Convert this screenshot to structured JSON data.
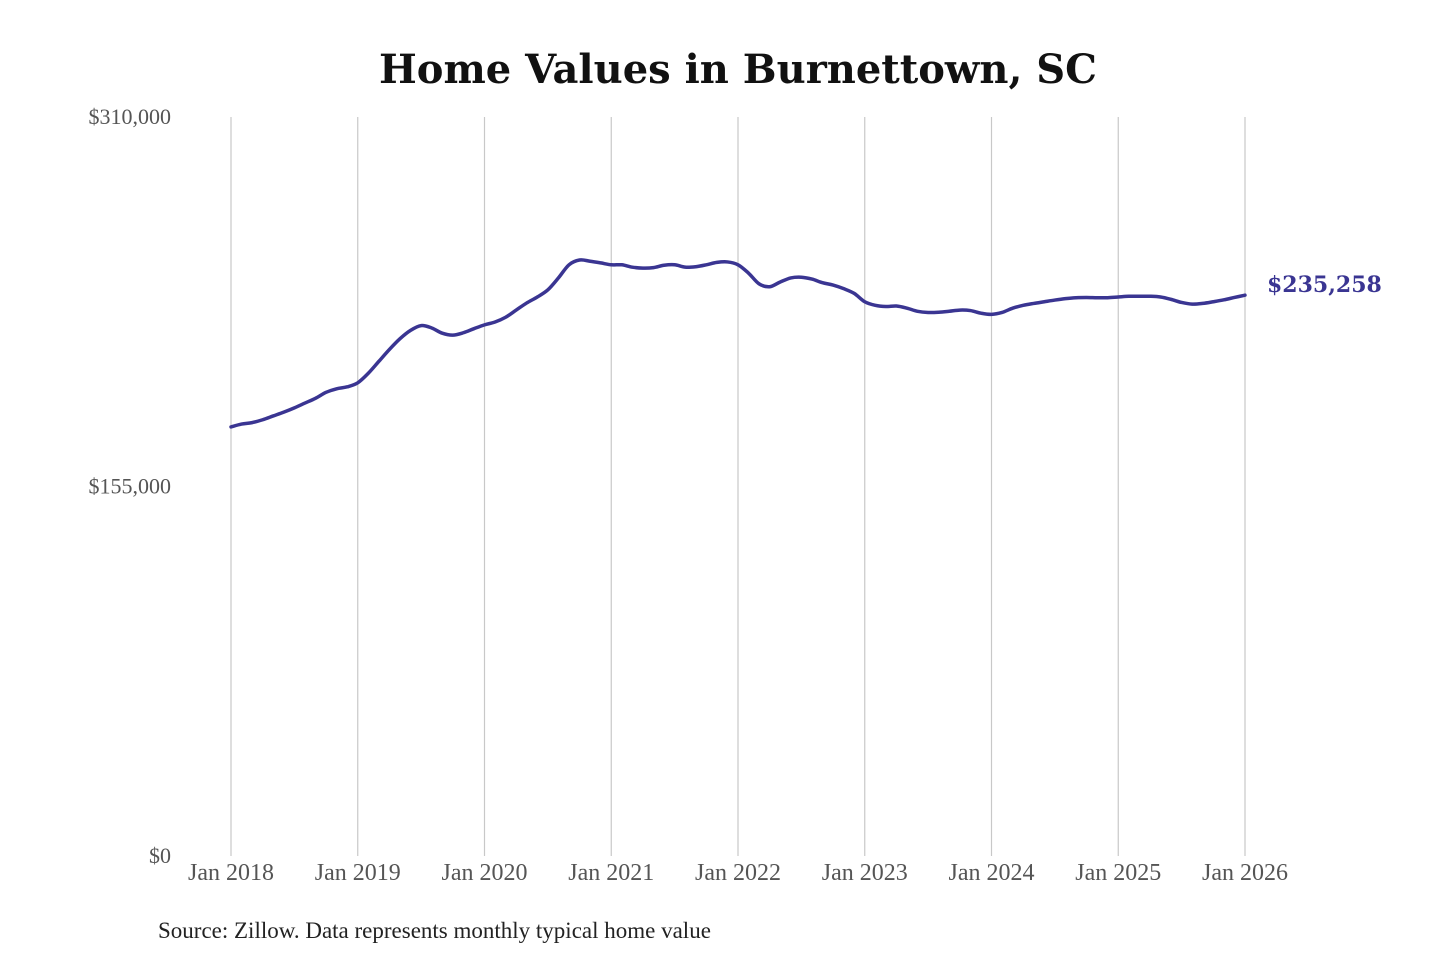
{
  "chart_data": {
    "type": "line",
    "title": "Home Values in Burnettown, SC",
    "source": "Source: Zillow. Data represents monthly typical home value",
    "y_ticks": [
      "$310,000",
      "$155,000",
      "$0"
    ],
    "x_ticks": [
      "Jan 2018",
      "Jan 2019",
      "Jan 2020",
      "Jan 2021",
      "Jan 2022",
      "Jan 2023",
      "Jan 2024",
      "Jan 2025",
      "Jan 2026"
    ],
    "ylim": [
      0,
      310000
    ],
    "xlim": [
      "2018-01",
      "2026-01"
    ],
    "grid": "vertical",
    "line_color": "#3a3592",
    "end_label": "$235,258",
    "series": [
      {
        "points": [
          [
            "2018-01",
            180000
          ],
          [
            "2018-02",
            181200
          ],
          [
            "2018-03",
            181800
          ],
          [
            "2018-04",
            183000
          ],
          [
            "2018-05",
            184600
          ],
          [
            "2018-06",
            186200
          ],
          [
            "2018-07",
            188000
          ],
          [
            "2018-08",
            190000
          ],
          [
            "2018-09",
            192000
          ],
          [
            "2018-10",
            194500
          ],
          [
            "2018-11",
            196000
          ],
          [
            "2018-12",
            196800
          ],
          [
            "2019-01",
            198500
          ],
          [
            "2019-02",
            202500
          ],
          [
            "2019-03",
            207500
          ],
          [
            "2019-04",
            212500
          ],
          [
            "2019-05",
            217000
          ],
          [
            "2019-06",
            220500
          ],
          [
            "2019-07",
            222500
          ],
          [
            "2019-08",
            221500
          ],
          [
            "2019-09",
            219300
          ],
          [
            "2019-10",
            218500
          ],
          [
            "2019-11",
            219500
          ],
          [
            "2019-12",
            221200
          ],
          [
            "2020-01",
            222800
          ],
          [
            "2020-02",
            224000
          ],
          [
            "2020-03",
            226000
          ],
          [
            "2020-04",
            229000
          ],
          [
            "2020-05",
            232000
          ],
          [
            "2020-06",
            234500
          ],
          [
            "2020-07",
            237500
          ],
          [
            "2020-08",
            242500
          ],
          [
            "2020-09",
            248000
          ],
          [
            "2020-10",
            250000
          ],
          [
            "2020-11",
            249500
          ],
          [
            "2020-12",
            248800
          ],
          [
            "2021-01",
            248000
          ],
          [
            "2021-02",
            248000
          ],
          [
            "2021-03",
            247000
          ],
          [
            "2021-04",
            246600
          ],
          [
            "2021-05",
            246800
          ],
          [
            "2021-06",
            247800
          ],
          [
            "2021-07",
            248000
          ],
          [
            "2021-08",
            247000
          ],
          [
            "2021-09",
            247200
          ],
          [
            "2021-10",
            248000
          ],
          [
            "2021-11",
            249000
          ],
          [
            "2021-12",
            249200
          ],
          [
            "2022-01",
            248000
          ],
          [
            "2022-02",
            244500
          ],
          [
            "2022-03",
            240000
          ],
          [
            "2022-04",
            238800
          ],
          [
            "2022-05",
            240800
          ],
          [
            "2022-06",
            242500
          ],
          [
            "2022-07",
            242800
          ],
          [
            "2022-08",
            242000
          ],
          [
            "2022-09",
            240500
          ],
          [
            "2022-10",
            239500
          ],
          [
            "2022-11",
            238000
          ],
          [
            "2022-12",
            236000
          ],
          [
            "2023-01",
            232500
          ],
          [
            "2023-02",
            231000
          ],
          [
            "2023-03",
            230500
          ],
          [
            "2023-04",
            230700
          ],
          [
            "2023-05",
            229800
          ],
          [
            "2023-06",
            228500
          ],
          [
            "2023-07",
            228000
          ],
          [
            "2023-08",
            228100
          ],
          [
            "2023-09",
            228500
          ],
          [
            "2023-10",
            229000
          ],
          [
            "2023-11",
            228800
          ],
          [
            "2023-12",
            227700
          ],
          [
            "2024-01",
            227200
          ],
          [
            "2024-02",
            228000
          ],
          [
            "2024-03",
            229800
          ],
          [
            "2024-04",
            231000
          ],
          [
            "2024-05",
            231800
          ],
          [
            "2024-06",
            232500
          ],
          [
            "2024-07",
            233200
          ],
          [
            "2024-08",
            233800
          ],
          [
            "2024-09",
            234200
          ],
          [
            "2024-10",
            234300
          ],
          [
            "2024-11",
            234200
          ],
          [
            "2024-12",
            234200
          ],
          [
            "2025-01",
            234500
          ],
          [
            "2025-02",
            234800
          ],
          [
            "2025-03",
            234800
          ],
          [
            "2025-04",
            234800
          ],
          [
            "2025-05",
            234500
          ],
          [
            "2025-06",
            233500
          ],
          [
            "2025-07",
            232200
          ],
          [
            "2025-08",
            231500
          ],
          [
            "2025-09",
            231800
          ],
          [
            "2025-10",
            232500
          ],
          [
            "2025-11",
            233300
          ],
          [
            "2025-12",
            234300
          ],
          [
            "2026-01",
            235258
          ]
        ]
      }
    ]
  }
}
